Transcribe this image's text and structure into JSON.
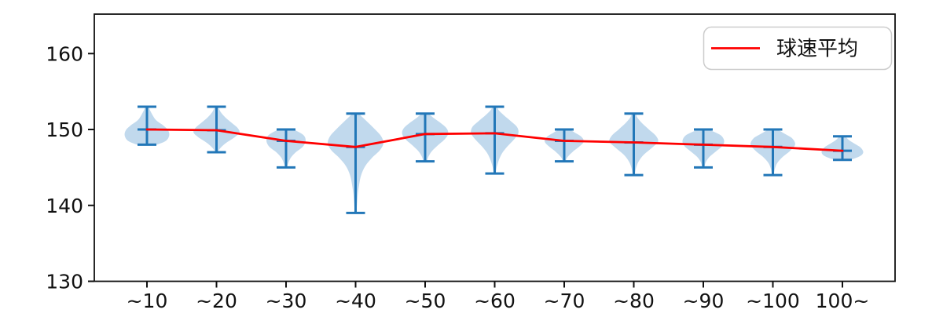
{
  "chart_data": {
    "type": "violin",
    "title": "",
    "xlabel": "",
    "ylabel": "",
    "grid": false,
    "ylim": [
      130,
      165.2
    ],
    "yticks": [
      130,
      140,
      150,
      160
    ],
    "categories": [
      "~10",
      "~20",
      "~30",
      "~40",
      "~50",
      "~60",
      "~70",
      "~80",
      "~90",
      "~100",
      "100~"
    ],
    "legend": {
      "label": "球速平均",
      "position": "upper right"
    },
    "mean_series": {
      "name": "球速平均",
      "values": [
        150.0,
        149.9,
        148.5,
        147.7,
        149.4,
        149.5,
        148.5,
        148.3,
        148.0,
        147.7,
        147.2
      ]
    },
    "violins": [
      {
        "label": "~10",
        "min": 148.0,
        "max": 153.0,
        "mean": 150.0,
        "halfwidth": 0.32,
        "profile": [
          [
            148.0,
            0.45
          ],
          [
            148.5,
            0.85
          ],
          [
            149.2,
            1.0
          ],
          [
            149.9,
            0.95
          ],
          [
            150.5,
            0.75
          ],
          [
            151.2,
            0.42
          ],
          [
            151.9,
            0.25
          ],
          [
            152.5,
            0.14
          ],
          [
            153.0,
            0.06
          ]
        ]
      },
      {
        "label": "~20",
        "min": 147.0,
        "max": 153.0,
        "mean": 149.9,
        "halfwidth": 0.33,
        "profile": [
          [
            147.0,
            0.05
          ],
          [
            147.6,
            0.18
          ],
          [
            148.3,
            0.45
          ],
          [
            149.0,
            0.8
          ],
          [
            149.6,
            1.0
          ],
          [
            150.2,
            0.92
          ],
          [
            150.9,
            0.65
          ],
          [
            151.6,
            0.38
          ],
          [
            152.3,
            0.18
          ],
          [
            153.0,
            0.06
          ]
        ]
      },
      {
        "label": "~30",
        "min": 145.0,
        "max": 150.0,
        "mean": 148.5,
        "halfwidth": 0.28,
        "profile": [
          [
            145.0,
            0.05
          ],
          [
            145.6,
            0.12
          ],
          [
            146.3,
            0.25
          ],
          [
            147.0,
            0.5
          ],
          [
            147.7,
            0.85
          ],
          [
            148.4,
            1.0
          ],
          [
            149.1,
            0.95
          ],
          [
            149.6,
            0.7
          ],
          [
            150.0,
            0.3
          ]
        ]
      },
      {
        "label": "~40",
        "min": 139.0,
        "max": 152.1,
        "mean": 147.7,
        "halfwidth": 0.4,
        "profile": [
          [
            139.0,
            0.03
          ],
          [
            140.2,
            0.05
          ],
          [
            141.5,
            0.08
          ],
          [
            142.8,
            0.13
          ],
          [
            144.0,
            0.2
          ],
          [
            145.2,
            0.35
          ],
          [
            146.3,
            0.6
          ],
          [
            147.3,
            0.88
          ],
          [
            148.2,
            1.0
          ],
          [
            149.1,
            0.92
          ],
          [
            150.0,
            0.7
          ],
          [
            150.9,
            0.45
          ],
          [
            151.6,
            0.25
          ],
          [
            152.1,
            0.1
          ]
        ]
      },
      {
        "label": "~50",
        "min": 145.8,
        "max": 152.1,
        "mean": 149.4,
        "halfwidth": 0.33,
        "profile": [
          [
            145.8,
            0.08
          ],
          [
            146.4,
            0.14
          ],
          [
            147.1,
            0.28
          ],
          [
            147.9,
            0.55
          ],
          [
            148.7,
            0.85
          ],
          [
            149.4,
            1.0
          ],
          [
            150.1,
            0.95
          ],
          [
            150.8,
            0.7
          ],
          [
            151.5,
            0.38
          ],
          [
            152.1,
            0.12
          ]
        ]
      },
      {
        "label": "~60",
        "min": 144.2,
        "max": 153.0,
        "mean": 149.5,
        "halfwidth": 0.34,
        "profile": [
          [
            144.2,
            0.04
          ],
          [
            145.1,
            0.09
          ],
          [
            146.0,
            0.18
          ],
          [
            146.9,
            0.32
          ],
          [
            147.8,
            0.55
          ],
          [
            148.7,
            0.82
          ],
          [
            149.5,
            1.0
          ],
          [
            150.3,
            0.95
          ],
          [
            151.1,
            0.68
          ],
          [
            151.9,
            0.38
          ],
          [
            152.5,
            0.18
          ],
          [
            153.0,
            0.07
          ]
        ]
      },
      {
        "label": "~70",
        "min": 145.8,
        "max": 150.0,
        "mean": 148.5,
        "halfwidth": 0.28,
        "profile": [
          [
            145.8,
            0.06
          ],
          [
            146.4,
            0.18
          ],
          [
            147.1,
            0.45
          ],
          [
            147.8,
            0.8
          ],
          [
            148.4,
            1.0
          ],
          [
            149.0,
            0.9
          ],
          [
            149.5,
            0.6
          ],
          [
            150.0,
            0.22
          ]
        ]
      },
      {
        "label": "~80",
        "min": 144.0,
        "max": 152.1,
        "mean": 148.3,
        "halfwidth": 0.35,
        "profile": [
          [
            144.0,
            0.04
          ],
          [
            144.9,
            0.09
          ],
          [
            145.8,
            0.2
          ],
          [
            146.7,
            0.42
          ],
          [
            147.6,
            0.75
          ],
          [
            148.4,
            1.0
          ],
          [
            149.2,
            0.9
          ],
          [
            150.0,
            0.62
          ],
          [
            150.8,
            0.35
          ],
          [
            151.5,
            0.16
          ],
          [
            152.1,
            0.06
          ]
        ]
      },
      {
        "label": "~90",
        "min": 145.0,
        "max": 150.0,
        "mean": 148.0,
        "halfwidth": 0.3,
        "profile": [
          [
            145.0,
            0.05
          ],
          [
            145.7,
            0.12
          ],
          [
            146.4,
            0.3
          ],
          [
            147.1,
            0.6
          ],
          [
            147.8,
            0.9
          ],
          [
            148.5,
            1.0
          ],
          [
            149.2,
            0.85
          ],
          [
            149.7,
            0.5
          ],
          [
            150.0,
            0.18
          ]
        ]
      },
      {
        "label": "~100",
        "min": 144.0,
        "max": 150.0,
        "mean": 147.7,
        "halfwidth": 0.32,
        "profile": [
          [
            144.0,
            0.04
          ],
          [
            144.8,
            0.09
          ],
          [
            145.6,
            0.2
          ],
          [
            146.4,
            0.45
          ],
          [
            147.2,
            0.78
          ],
          [
            148.0,
            1.0
          ],
          [
            148.8,
            0.88
          ],
          [
            149.4,
            0.55
          ],
          [
            150.0,
            0.16
          ]
        ]
      },
      {
        "label": "100~",
        "min": 146.0,
        "max": 149.1,
        "mean": 147.2,
        "halfwidth": 0.3,
        "profile": [
          [
            146.0,
            0.4
          ],
          [
            146.5,
            0.85
          ],
          [
            147.0,
            1.0
          ],
          [
            147.6,
            0.88
          ],
          [
            148.1,
            0.6
          ],
          [
            148.6,
            0.32
          ],
          [
            149.1,
            0.12
          ]
        ]
      }
    ],
    "colors": {
      "violin_fill": "#c1d9ed",
      "violin_stroke": "#2277b8",
      "mean_line": "#ff0000",
      "axis": "#111111",
      "legend_border": "#cccccc",
      "background": "#ffffff"
    }
  }
}
